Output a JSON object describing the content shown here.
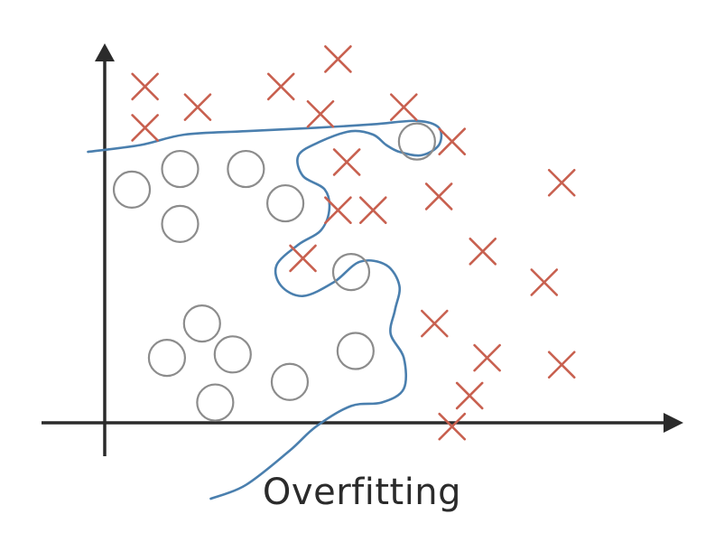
{
  "caption": "Overfitting",
  "colors": {
    "axis": "#2b2b2b",
    "circle": "#8c8c8c",
    "cross": "#c8604f",
    "boundary": "#4a7fae"
  },
  "marker_types": {
    "class_a": "circle",
    "class_b": "cross"
  },
  "chart_data": {
    "type": "scatter",
    "series": [
      {
        "marker": "circle",
        "points": [
          [
            1.0,
            7.2
          ],
          [
            2.1,
            7.8
          ],
          [
            3.6,
            7.8
          ],
          [
            4.5,
            6.8
          ],
          [
            2.1,
            6.2
          ],
          [
            6.0,
            4.8
          ],
          [
            2.6,
            3.3
          ],
          [
            1.8,
            2.3
          ],
          [
            3.3,
            2.4
          ],
          [
            4.6,
            1.6
          ],
          [
            2.9,
            1.0
          ],
          [
            6.1,
            2.5
          ],
          [
            7.5,
            8.6
          ]
        ]
      },
      {
        "marker": "cross",
        "points": [
          [
            1.3,
            10.2
          ],
          [
            2.5,
            9.6
          ],
          [
            4.4,
            10.2
          ],
          [
            5.7,
            11.0
          ],
          [
            1.3,
            9.0
          ],
          [
            5.3,
            9.4
          ],
          [
            7.2,
            9.6
          ],
          [
            8.3,
            8.6
          ],
          [
            5.9,
            8.0
          ],
          [
            8.0,
            7.0
          ],
          [
            10.8,
            7.4
          ],
          [
            5.7,
            6.6
          ],
          [
            6.5,
            6.6
          ],
          [
            4.9,
            5.2
          ],
          [
            9.0,
            5.4
          ],
          [
            10.4,
            4.5
          ],
          [
            7.9,
            3.3
          ],
          [
            9.1,
            2.3
          ],
          [
            10.8,
            2.1
          ],
          [
            8.7,
            1.2
          ],
          [
            8.3,
            0.3
          ]
        ]
      }
    ],
    "boundary": [
      [
        0,
        8.3
      ],
      [
        1.2,
        8.5
      ],
      [
        2.2,
        8.8
      ],
      [
        3.6,
        8.9
      ],
      [
        5.2,
        9.0
      ],
      [
        6.5,
        9.1
      ],
      [
        7.5,
        9.2
      ],
      [
        8.0,
        9.0
      ],
      [
        8.0,
        8.5
      ],
      [
        7.6,
        8.2
      ],
      [
        7.1,
        8.3
      ],
      [
        6.8,
        8.5
      ],
      [
        6.5,
        8.8
      ],
      [
        6.0,
        8.9
      ],
      [
        5.3,
        8.6
      ],
      [
        4.8,
        8.2
      ],
      [
        4.9,
        7.6
      ],
      [
        5.4,
        7.2
      ],
      [
        5.5,
        6.6
      ],
      [
        5.3,
        6.0
      ],
      [
        4.8,
        5.6
      ],
      [
        4.3,
        5.0
      ],
      [
        4.4,
        4.4
      ],
      [
        4.9,
        4.1
      ],
      [
        5.6,
        4.5
      ],
      [
        6.2,
        5.1
      ],
      [
        6.8,
        5.0
      ],
      [
        7.1,
        4.4
      ],
      [
        7.0,
        3.7
      ],
      [
        6.9,
        3.0
      ],
      [
        7.2,
        2.3
      ],
      [
        7.2,
        1.4
      ],
      [
        6.7,
        1.0
      ],
      [
        6.0,
        0.9
      ],
      [
        5.2,
        0.3
      ],
      [
        4.6,
        -0.4
      ],
      [
        3.6,
        -1.4
      ],
      [
        2.8,
        -1.8
      ]
    ],
    "xlim": [
      -1.8,
      14.5
    ],
    "ylim": [
      -2.8,
      12.3
    ],
    "xlabel": "",
    "ylabel": "",
    "title": ""
  }
}
